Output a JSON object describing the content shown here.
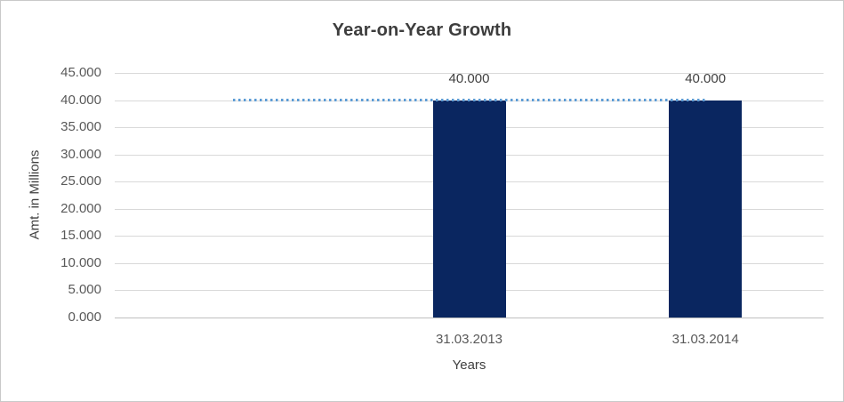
{
  "frame": {
    "background": "#ffffff",
    "border_color": "#c9c9c9"
  },
  "chart_data": {
    "type": "bar",
    "title": "Year-on-Year Growth",
    "xlabel": "Years",
    "ylabel": "Amt. in Millions",
    "categories": [
      "",
      "31.03.2013",
      "31.03.2014"
    ],
    "series": [
      {
        "name": "Amount",
        "type": "bar",
        "color": "#0a2660",
        "values": [
          null,
          40000,
          40000
        ],
        "data_labels": [
          null,
          "40.000",
          "40.000"
        ]
      },
      {
        "name": "Reference line",
        "type": "line",
        "line_style": "dotted",
        "color": "#5b9bd5",
        "values": [
          40000,
          40000,
          40000
        ]
      }
    ],
    "y_axis": {
      "min": 0,
      "max": 45000,
      "step": 5000,
      "tick_labels": [
        "0.000",
        "5.000",
        "10.000",
        "15.000",
        "20.000",
        "25.000",
        "30.000",
        "35.000",
        "40.000",
        "45.000"
      ]
    },
    "x_axis": {
      "tick_labels": [
        "31.03.2013",
        "31.03.2014"
      ]
    },
    "grid": true,
    "legend": false,
    "gridline_color": "#d9d9d9",
    "axis_line_color": "#bfbfbf",
    "text_colors": {
      "title": "#3d3d3d",
      "ticks": "#595959",
      "axis_titles": "#404040",
      "data_labels": "#404040"
    }
  }
}
